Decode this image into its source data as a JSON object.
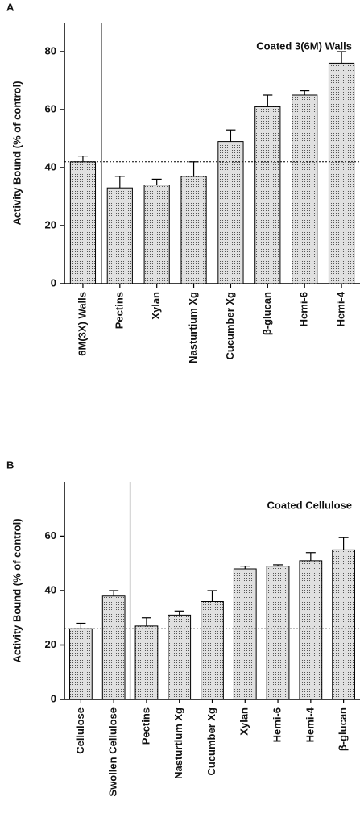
{
  "chart_data": [
    {
      "type": "bar",
      "panel": "A",
      "title": "Coated 3(6M) Walls",
      "y_label": "Activity Bound (% of control)",
      "categories": [
        "6M(3X) Walls",
        "Pectins",
        "Xylan",
        "Nasturtium Xg",
        "Cucumber Xg",
        "β-glucan",
        "Hemi-6",
        "Hemi-4"
      ],
      "values": [
        42,
        33,
        34,
        37,
        49,
        61,
        65,
        76
      ],
      "errors": [
        2,
        4,
        2,
        5,
        4,
        4,
        1.5,
        4
      ],
      "reference_line": 42,
      "color": "#c4c4c4",
      "ylim": [
        0,
        90
      ],
      "yticks": [
        0,
        20,
        40,
        60,
        80
      ]
    },
    {
      "type": "bar",
      "panel": "B",
      "title": "Coated Cellulose",
      "y_label": "Activity Bound (% of control)",
      "categories": [
        "Cellulose",
        "Swollen Cellulose",
        "Pectins",
        "Nasturtium Xg",
        "Cucumber Xg",
        "Xylan",
        "Hemi-6",
        "Hemi-4",
        "β-glucan"
      ],
      "values": [
        26,
        38,
        27,
        31,
        36,
        48,
        49,
        51,
        55
      ],
      "errors": [
        2,
        2,
        3,
        1.5,
        4,
        1,
        0.5,
        3,
        4.5
      ],
      "reference_line": 26,
      "color": "#c4c4c4",
      "ylim": [
        0,
        80
      ],
      "yticks": [
        0,
        20,
        40,
        60
      ]
    }
  ]
}
